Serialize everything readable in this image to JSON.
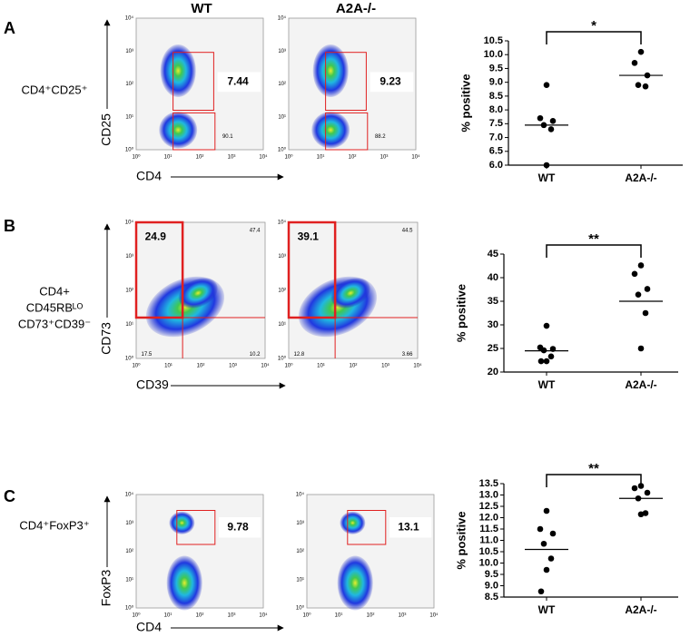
{
  "columns": [
    "WT",
    "A2A-/-"
  ],
  "flow_ticks": [
    "10⁰",
    "10¹",
    "10²",
    "10³",
    "10⁴"
  ],
  "panels": [
    {
      "label": "A",
      "population": [
        "CD4⁺CD25⁺"
      ],
      "x_axis": "CD4",
      "y_axis": "CD25",
      "gates": [
        [
          7.44,
          90.1
        ],
        [
          9.23,
          88.2
        ]
      ]
    },
    {
      "label": "B",
      "population": [
        "CD4+",
        "CD45RBᴸᴼ",
        "CD73⁺CD39⁻"
      ],
      "x_axis": "CD39",
      "y_axis": "CD73",
      "gates": [
        [
          24.9,
          47.4,
          17.5,
          10.2
        ],
        [
          39.1,
          44.5,
          12.8,
          3.66
        ]
      ]
    },
    {
      "label": "C",
      "population": [
        "CD4⁺FoxP3⁺"
      ],
      "x_axis": "CD4",
      "y_axis": "FoxP3",
      "gates": [
        [
          9.78
        ],
        [
          13.1
        ]
      ]
    }
  ],
  "chart_data": [
    {
      "type": "dot",
      "categories": [
        "WT",
        "A2A-/-"
      ],
      "ylabel": "% positive",
      "annotation": "*",
      "values": [
        [
          8.9,
          7.7,
          7.6,
          7.45,
          7.3,
          6.0
        ],
        [
          10.1,
          9.7,
          9.25,
          8.9,
          8.85
        ]
      ],
      "centers": [
        7.45,
        9.25
      ],
      "ylim": [
        6,
        10.5
      ],
      "yticks": [
        {
          "value": 6,
          "label": "6.0"
        },
        6.5,
        {
          "value": 7,
          "label": "7.0"
        },
        7.5,
        {
          "value": 8,
          "label": "8.0"
        },
        8.5,
        {
          "value": 9,
          "label": "9.0"
        },
        9.5,
        {
          "value": 10,
          "label": "10.0"
        },
        10.5
      ]
    },
    {
      "type": "dot",
      "categories": [
        "WT",
        "A2A-/-"
      ],
      "ylabel": "% positive",
      "annotation": "**",
      "values": [
        [
          29.8,
          25.2,
          24.9,
          24.6,
          23.3,
          22.3,
          22.3
        ],
        [
          42.6,
          40.8,
          37.6,
          36.4,
          32.5,
          25
        ]
      ],
      "centers": [
        24.5,
        35
      ],
      "ylim": [
        20,
        45
      ],
      "yticks": [
        20,
        25,
        30,
        35,
        40,
        45
      ]
    },
    {
      "type": "dot",
      "categories": [
        "WT",
        "A2A-/-"
      ],
      "ylabel": "% positive",
      "annotation": "**",
      "values": [
        [
          12.3,
          11.5,
          11.3,
          10.85,
          10.2,
          9.7,
          8.75
        ],
        [
          13.4,
          13.3,
          13.1,
          12.85,
          12.2,
          12.15
        ]
      ],
      "centers": [
        10.6,
        12.85
      ],
      "ylim": [
        8.5,
        13.5
      ],
      "yticks": [
        8.5,
        {
          "value": 9,
          "label": "9.0"
        },
        9.5,
        {
          "value": 10,
          "label": "10.0"
        },
        10.5,
        {
          "value": 11,
          "label": "11.0"
        },
        11.5,
        {
          "value": 12,
          "label": "12.0"
        },
        12.5,
        {
          "value": 13,
          "label": "13.0"
        },
        13.5
      ]
    }
  ]
}
